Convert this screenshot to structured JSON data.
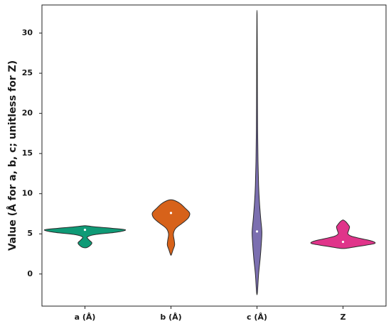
{
  "chart_data": {
    "type": "violin",
    "title": "",
    "xlabel": "",
    "ylabel": "Value (Å for a, b, c; unitless for Z)",
    "categories": [
      "a (Å)",
      "b (Å)",
      "c (Å)",
      "Z"
    ],
    "ylim": [
      -4,
      33.5
    ],
    "yticks": [
      0,
      5,
      10,
      15,
      20,
      25,
      30
    ],
    "grid": false,
    "colors": [
      "#0f9a76",
      "#d7621a",
      "#7b6fb0",
      "#e0348a"
    ],
    "series": [
      {
        "category": "a (Å)",
        "median": 5.5,
        "range": [
          3.3,
          6.0
        ],
        "density": [
          [
            3.3,
            0.05
          ],
          [
            3.6,
            0.14
          ],
          [
            3.9,
            0.17
          ],
          [
            4.2,
            0.11
          ],
          [
            4.6,
            0.06
          ],
          [
            4.9,
            0.24
          ],
          [
            5.2,
            0.77
          ],
          [
            5.5,
            1.0
          ],
          [
            5.7,
            0.66
          ],
          [
            5.85,
            0.3
          ],
          [
            6.0,
            0.03
          ]
        ]
      },
      {
        "category": "b (Å)",
        "median": 7.6,
        "range": [
          2.4,
          9.2
        ],
        "density": [
          [
            2.4,
            0.01
          ],
          [
            3.0,
            0.05
          ],
          [
            3.6,
            0.09
          ],
          [
            4.2,
            0.08
          ],
          [
            5.0,
            0.06
          ],
          [
            5.7,
            0.12
          ],
          [
            6.4,
            0.3
          ],
          [
            7.0,
            0.43
          ],
          [
            7.6,
            0.46
          ],
          [
            8.2,
            0.35
          ],
          [
            8.8,
            0.22
          ],
          [
            9.2,
            0.06
          ]
        ]
      },
      {
        "category": "c (Å)",
        "median": 5.3,
        "range": [
          -2.3,
          32.3
        ],
        "density": [
          [
            -2.3,
            0.01
          ],
          [
            0.0,
            0.04
          ],
          [
            2.0,
            0.08
          ],
          [
            4.0,
            0.11
          ],
          [
            5.3,
            0.12
          ],
          [
            7.0,
            0.09
          ],
          [
            9.0,
            0.06
          ],
          [
            11.0,
            0.04
          ],
          [
            14.0,
            0.025
          ],
          [
            18.0,
            0.015
          ],
          [
            23.0,
            0.01
          ],
          [
            28.0,
            0.007
          ],
          [
            32.3,
            0.003
          ]
        ]
      },
      {
        "category": "Z",
        "median": 4.0,
        "range": [
          3.2,
          6.7
        ],
        "density": [
          [
            3.2,
            0.08
          ],
          [
            3.5,
            0.45
          ],
          [
            3.8,
            0.78
          ],
          [
            4.1,
            0.71
          ],
          [
            4.4,
            0.45
          ],
          [
            4.7,
            0.21
          ],
          [
            5.0,
            0.12
          ],
          [
            5.3,
            0.13
          ],
          [
            5.6,
            0.15
          ],
          [
            5.9,
            0.16
          ],
          [
            6.2,
            0.12
          ],
          [
            6.5,
            0.07
          ],
          [
            6.7,
            0.02
          ]
        ]
      }
    ]
  }
}
